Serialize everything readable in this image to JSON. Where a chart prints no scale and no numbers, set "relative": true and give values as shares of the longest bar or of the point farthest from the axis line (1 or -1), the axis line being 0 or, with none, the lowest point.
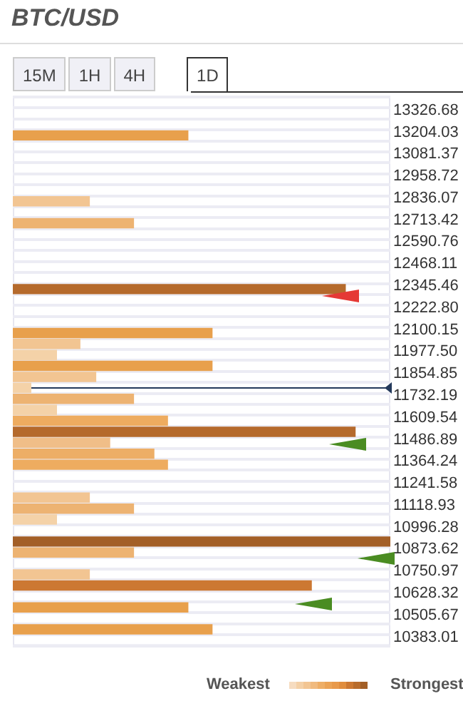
{
  "chart_data": {
    "type": "bar",
    "orientation": "horizontal",
    "relative": true,
    "title": "BTC/USD",
    "categories": [
      "13326.68",
      null,
      "13204.03",
      null,
      "13081.37",
      null,
      "12958.72",
      null,
      "12836.07",
      null,
      "12713.42",
      null,
      "12590.76",
      null,
      "12468.11",
      null,
      "12345.46",
      null,
      "12222.80",
      null,
      "12100.15",
      null,
      "11977.50",
      null,
      "11854.85",
      null,
      "11732.19",
      null,
      "11609.54",
      null,
      "11486.89",
      null,
      "11364.24",
      null,
      "11241.58",
      null,
      "11118.93",
      null,
      "10996.28",
      null,
      "10873.62",
      null,
      "10750.97",
      null,
      "10628.32",
      null,
      "10505.67",
      null,
      "10383.01",
      null
    ],
    "values": [
      null,
      null,
      null,
      0.465,
      null,
      null,
      null,
      null,
      null,
      0.204,
      null,
      0.321,
      null,
      null,
      null,
      null,
      null,
      0.882,
      null,
      null,
      null,
      0.529,
      0.179,
      0.117,
      0.529,
      0.221,
      0.049,
      0.321,
      0.117,
      0.411,
      0.908,
      0.258,
      0.375,
      0.411,
      null,
      null,
      0.204,
      0.321,
      0.117,
      null,
      1,
      0.321,
      null,
      0.204,
      0.792,
      null,
      0.465,
      null,
      0.529,
      null
    ],
    "colors": [
      null,
      null,
      null,
      "#e8a04c",
      null,
      null,
      null,
      null,
      null,
      "#f2c592",
      null,
      "#edb372",
      null,
      null,
      null,
      null,
      null,
      "#b56a2c",
      null,
      null,
      null,
      "#e8a04c",
      "#f2c592",
      "#f4d2a8",
      "#e8a04c",
      "#f2c592",
      "#f4d2a8",
      "#edb372",
      "#f4d2a8",
      "#eeac60",
      "#b56a2c",
      "#f0be88",
      "#edae66",
      "#eeac60",
      null,
      null,
      "#f2c592",
      "#edb372",
      "#f4d2a8",
      null,
      "#a35f27",
      "#edb372",
      null,
      "#f2c592",
      "#cc7832",
      null,
      "#e8a04c",
      null,
      "#e8a04c",
      null
    ],
    "ref_lines": [
      {
        "axis": "y",
        "value": "11732.19",
        "color": "#23395b"
      }
    ],
    "grid": "y",
    "annotations": [
      "15M",
      "1H",
      "4H",
      "1D",
      "Weakest",
      "Strongest"
    ]
  }
}
